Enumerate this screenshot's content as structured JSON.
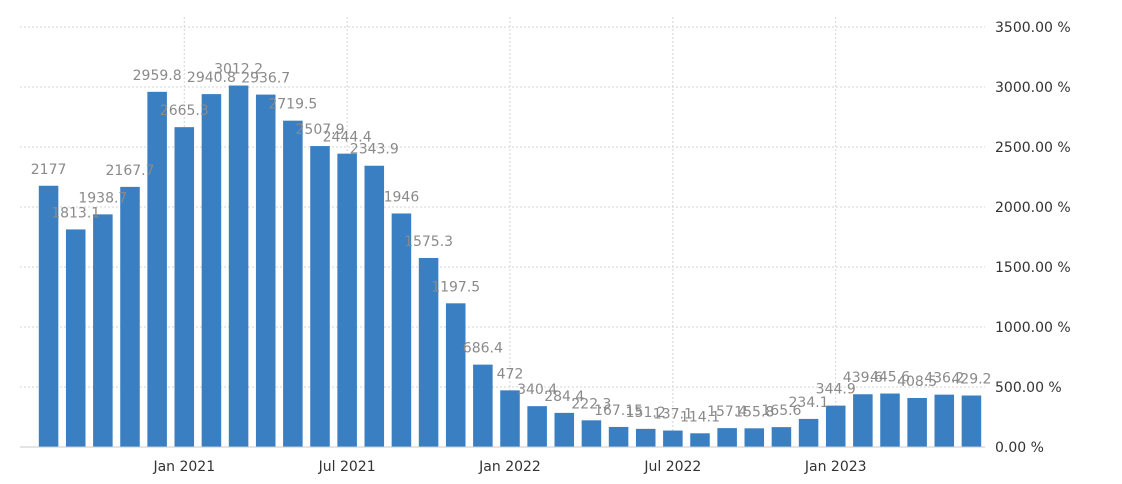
{
  "chart_data": {
    "type": "bar",
    "title": "",
    "xlabel": "",
    "ylabel": "",
    "ylim": [
      0,
      3500
    ],
    "yticks": [
      0,
      500,
      1000,
      1500,
      2000,
      2500,
      3000,
      3500
    ],
    "ytick_labels": [
      "0.00 %",
      "500.00 %",
      "1000.00 %",
      "1500.00 %",
      "2000.00 %",
      "2500.00 %",
      "3000.00 %",
      "3500.00 %"
    ],
    "xtick_labels": [
      {
        "index": 5,
        "label": "Jan 2021"
      },
      {
        "index": 11,
        "label": "Jul 2021"
      },
      {
        "index": 17,
        "label": "Jan 2022"
      },
      {
        "index": 23,
        "label": "Jul 2022"
      },
      {
        "index": 29,
        "label": "Jan 2023"
      }
    ],
    "bar_color": "#3a7fc1",
    "values": [
      2177,
      1813.1,
      1938.7,
      2167.7,
      2959.8,
      2665.3,
      2940.8,
      3012.2,
      2936.7,
      2719.5,
      2507.9,
      2444.4,
      2343.9,
      1946,
      1575.3,
      1197.5,
      686.4,
      472,
      340.4,
      284.4,
      222.3,
      167.15,
      151.2,
      137.1,
      114.1,
      157.4,
      155.8,
      165.6,
      234.1,
      344.9,
      439.6,
      445.6,
      408.5,
      436.2,
      429.2
    ],
    "labels": [
      "2177",
      "1813.1",
      "1938.7",
      "2167.7",
      "2959.8",
      "2665.3",
      "2940.8",
      "3012.2",
      "2936.7",
      "2719.5",
      "2507.9",
      "2444.4",
      "2343.9",
      "1946",
      "1575.3",
      "1197.5",
      "686.4",
      "472",
      "340.4",
      "284.4",
      "222.3",
      "167.15",
      "151.2",
      "137.1",
      "114.1",
      "157.4",
      "155.8",
      "165.6",
      "234.1",
      "344.9",
      "439.6",
      "445.6",
      "408.5",
      "436.2",
      "429.2"
    ]
  }
}
